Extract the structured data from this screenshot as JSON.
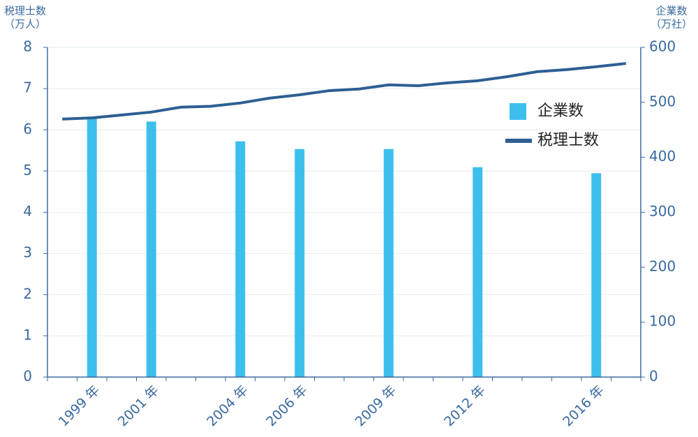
{
  "chart_data": {
    "type": "bar-line",
    "y_title": [
      "税理士数",
      "（万人）"
    ],
    "y2_title": [
      "企業数",
      "（万社）"
    ],
    "categories": [
      null,
      "1999 年",
      null,
      "2001 年",
      null,
      null,
      "2004 年",
      null,
      "2006 年",
      null,
      null,
      "2009 年",
      null,
      null,
      "2012 年",
      null,
      null,
      null,
      "2016 年",
      null
    ],
    "series": [
      {
        "name": "企業数",
        "color": "#3dbfee",
        "kind": "bar",
        "axis": "y2",
        "values": [
          null,
          470,
          null,
          465,
          null,
          null,
          429,
          null,
          415,
          null,
          null,
          415,
          null,
          null,
          382,
          null,
          null,
          null,
          371,
          null
        ]
      },
      {
        "name": "税理士数",
        "color": "#2d5f94",
        "kind": "line",
        "axis": "y",
        "values": [
          6.26,
          6.29,
          6.36,
          6.43,
          6.55,
          6.57,
          6.65,
          6.77,
          6.85,
          6.95,
          6.99,
          7.09,
          7.07,
          7.14,
          7.19,
          7.29,
          7.41,
          7.46,
          7.53,
          7.61
        ]
      }
    ],
    "ylim": [
      0,
      8
    ],
    "yticks": [
      0,
      1,
      2,
      3,
      4,
      5,
      6,
      7,
      8
    ],
    "y2lim": [
      0,
      600
    ],
    "y2ticks": [
      0,
      100,
      200,
      300,
      400,
      500,
      600
    ],
    "grid": true
  }
}
